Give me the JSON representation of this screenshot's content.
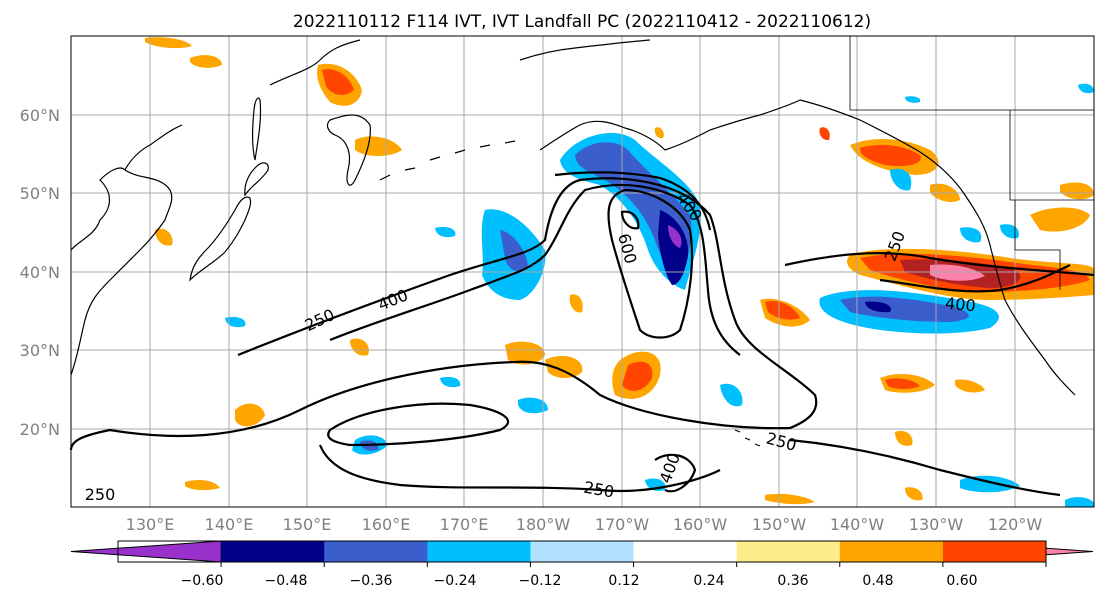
{
  "title": "2022110112 F114 IVT, IVT Landfall PC (2022110412 - 2022110612)",
  "map": {
    "lat_labels": [
      "60°N",
      "50°N",
      "40°N",
      "30°N",
      "20°N"
    ],
    "lon_labels": [
      "130°E",
      "140°E",
      "150°E",
      "160°E",
      "170°E",
      "180°W",
      "170°W",
      "160°W",
      "150°W",
      "140°W",
      "130°W",
      "120°W"
    ],
    "contour_labels": [
      "250",
      "400",
      "600",
      "400",
      "250",
      "400",
      "250",
      "400",
      "250",
      "250"
    ]
  },
  "colorbar": {
    "colors": [
      "#9932cc",
      "#00008b",
      "#3a5fcd",
      "#00bfff",
      "#b0e2ff",
      "#ffffff",
      "#ffec8b",
      "#ffa500",
      "#ff4500",
      "#b22222",
      "#ff82ab"
    ],
    "tick_labels": [
      "−0.60",
      "−0.48",
      "−0.36",
      "−0.24",
      "−0.12",
      "0.12",
      "0.24",
      "0.36",
      "0.48",
      "0.60"
    ]
  }
}
